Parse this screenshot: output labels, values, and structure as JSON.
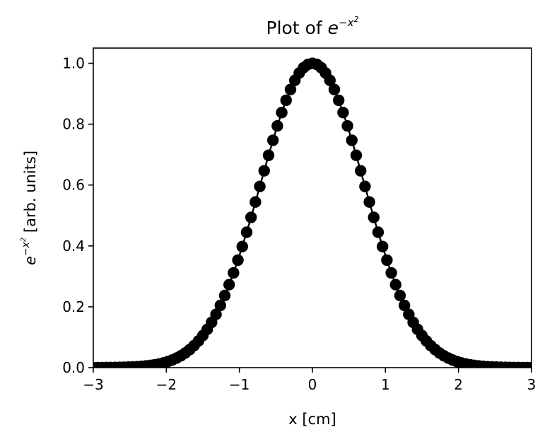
{
  "chart_data": {
    "type": "line",
    "title": "Plot of e^{-x^2}",
    "title_parts": {
      "prefix": "Plot of ",
      "base": "e",
      "exponent": "−x",
      "exp_power": "2"
    },
    "xlabel": "x [cm]",
    "ylabel": "e^{-x^2} [arb. units]",
    "ylabel_parts": {
      "base": "e",
      "exponent": "−x",
      "exp_power": "2",
      "suffix": " [arb. units]"
    },
    "xlim": [
      -3,
      3
    ],
    "ylim": [
      0,
      1.05
    ],
    "x_ticks": [
      -3,
      -2,
      -1,
      0,
      1,
      2,
      3
    ],
    "x_tick_labels": [
      "−3",
      "−2",
      "−1",
      "0",
      "1",
      "2",
      "3"
    ],
    "y_ticks": [
      0.0,
      0.2,
      0.4,
      0.6,
      0.8,
      1.0
    ],
    "y_tick_labels": [
      "0.0",
      "0.2",
      "0.4",
      "0.6",
      "0.8",
      "1.0"
    ],
    "grid": false,
    "series": [
      {
        "function": "exp(-x^2)",
        "x_start": -3,
        "x_end": 3,
        "n_points": 101,
        "color": "#000000",
        "marker": "circle",
        "linestyle": "solid"
      }
    ]
  }
}
